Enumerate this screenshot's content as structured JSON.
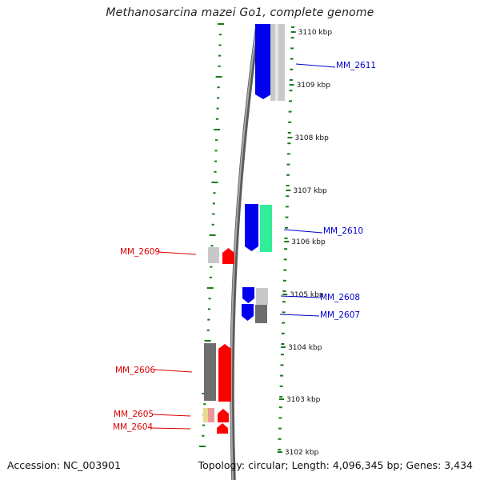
{
  "title": "Methanosarcina mazei Go1, complete genome",
  "footer": {
    "accession": "Accession: NC_003901",
    "summary": "Topology: circular; Length: 4,096,345 bp; Genes: 3,434"
  },
  "colors": {
    "backbone": "#7f7f7f",
    "tick": "#1a7a1a",
    "label_plus": "#0000cc",
    "label_minus": "#dd0000",
    "gene_blue": "#0000ee",
    "gene_grey": "#c8c8c8",
    "gene_darkgrey": "#6e6e6e",
    "gene_teal": "#33ee99",
    "gene_red": "#ff0000",
    "gene_pink": "#e89a9a",
    "gene_tan": "#e8d890"
  },
  "ticks": [
    {
      "label": "3110 kbp"
    },
    {
      "label": "3109 kbp"
    },
    {
      "label": "3108 kbp"
    },
    {
      "label": "3107 kbp"
    },
    {
      "label": "3106 kbp"
    },
    {
      "label": "3105 kbp"
    },
    {
      "label": "3104 kbp"
    },
    {
      "label": "3103 kbp"
    },
    {
      "label": "3102 kbp"
    }
  ],
  "gene_labels": [
    {
      "text": "MM_2611",
      "strand": "plus"
    },
    {
      "text": "MM_2610",
      "strand": "plus"
    },
    {
      "text": "MM_2609",
      "strand": "minus"
    },
    {
      "text": "MM_2608",
      "strand": "plus"
    },
    {
      "text": "MM_2607",
      "strand": "plus"
    },
    {
      "text": "MM_2606",
      "strand": "minus"
    },
    {
      "text": "MM_2605",
      "strand": "minus"
    },
    {
      "text": "MM_2604",
      "strand": "minus"
    }
  ]
}
